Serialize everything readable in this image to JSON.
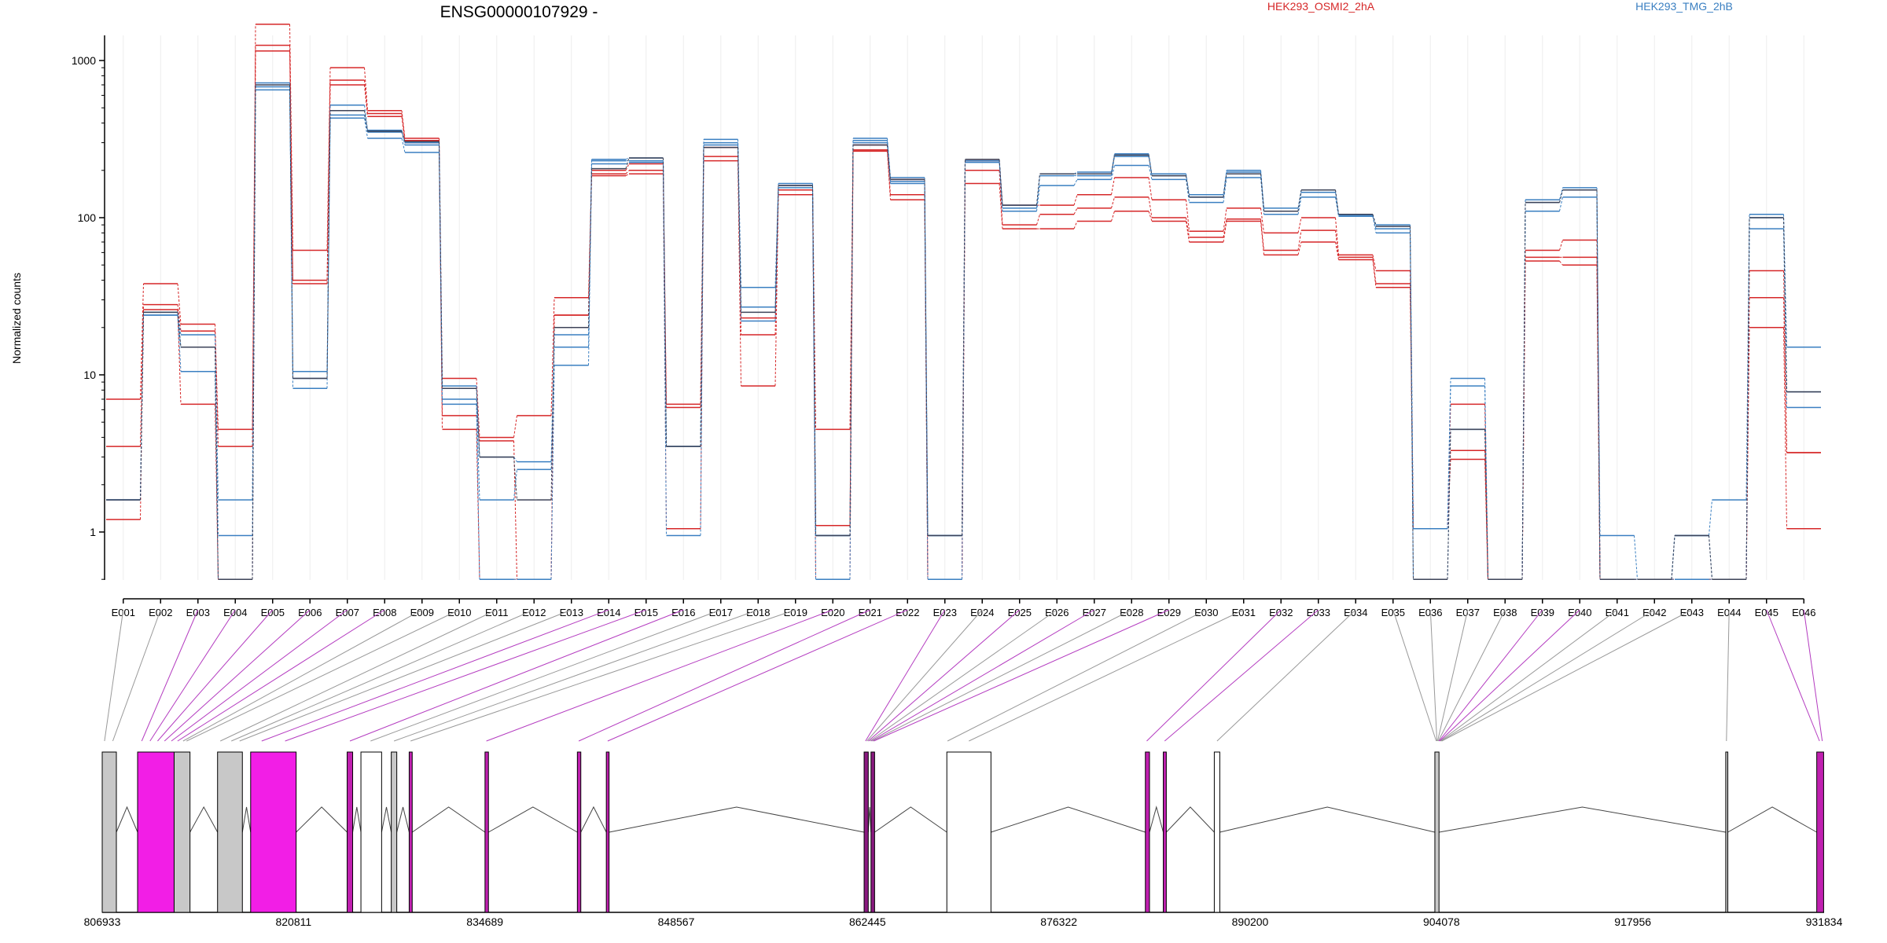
{
  "chart_data": {
    "type": "line",
    "title": "ENSG00000107929 -",
    "ylabel": "Normalized counts",
    "xlabel": "",
    "yscale": "log",
    "ylim": [
      0.5,
      2400
    ],
    "yticks": [
      1,
      10,
      100,
      1000
    ],
    "ytick_labels": [
      "1",
      "10",
      "100",
      "1000"
    ],
    "grid": "vertical-light",
    "legend_placement": "top",
    "legend": [
      {
        "label": "HEK293_OSMI2_2hA",
        "color": "#d62728"
      },
      {
        "label": "HEK293_TMG_2hB",
        "color": "#3a7fc1"
      }
    ],
    "categories": [
      "E001",
      "E002",
      "E003",
      "E004",
      "E005",
      "E006",
      "E007",
      "E008",
      "E009",
      "E010",
      "E011",
      "E012",
      "E013",
      "E014",
      "E015",
      "E016",
      "E017",
      "E018",
      "E019",
      "E020",
      "E021",
      "E022",
      "E023",
      "E024",
      "E025",
      "E026",
      "E027",
      "E028",
      "E029",
      "E030",
      "E031",
      "E032",
      "E033",
      "E034",
      "E035",
      "E036",
      "E037",
      "E038",
      "E039",
      "E040",
      "E041",
      "E042",
      "E043",
      "E044",
      "E045",
      "E046"
    ],
    "series": [
      {
        "color": "#d62728",
        "values": [
          7,
          38,
          21,
          4.5,
          1700,
          62,
          900,
          480,
          320,
          9.5,
          4,
          5.5,
          31,
          200,
          220,
          6.5,
          280,
          23,
          160,
          4.5,
          290,
          175,
          0.5,
          230,
          120,
          120,
          140,
          180,
          130,
          82,
          115,
          80,
          100,
          58,
          46,
          1.05,
          6.5,
          0.5,
          62,
          72,
          0.5,
          0.5,
          0.5,
          0.5,
          46,
          3.2
        ]
      },
      {
        "color": "#d62728",
        "values": [
          3.5,
          28,
          19,
          3.5,
          1250,
          40,
          750,
          460,
          310,
          5.5,
          3.8,
          0.5,
          24,
          190,
          200,
          6.2,
          245,
          18,
          150,
          1.1,
          270,
          140,
          0.5,
          200,
          90,
          105,
          115,
          135,
          100,
          75,
          98,
          62,
          83,
          56,
          38,
          1.05,
          3.3,
          0.5,
          56,
          56,
          0.5,
          0.5,
          0.5,
          0.5,
          31,
          3.2
        ]
      },
      {
        "color": "#d62728",
        "values": [
          1.2,
          26,
          6.5,
          0.5,
          1150,
          38,
          700,
          440,
          300,
          4.5,
          0.5,
          0.5,
          24,
          185,
          190,
          1.05,
          230,
          8.5,
          140,
          0.5,
          265,
          130,
          0.5,
          165,
          85,
          85,
          95,
          110,
          95,
          70,
          95,
          58,
          70,
          54,
          36,
          1.05,
          2.9,
          0.5,
          53,
          50,
          0.5,
          0.5,
          0.5,
          0.5,
          20,
          1.05
        ]
      },
      {
        "color": "#3a7fc1",
        "values": [
          1.6,
          25,
          18,
          1.6,
          720,
          10.5,
          520,
          360,
          300,
          8.5,
          3,
          2.8,
          18,
          235,
          240,
          3.5,
          315,
          36,
          165,
          0.95,
          320,
          180,
          0.95,
          235,
          120,
          190,
          195,
          255,
          190,
          140,
          200,
          115,
          150,
          105,
          90,
          1.05,
          9.5,
          0.5,
          130,
          155,
          0.95,
          0.5,
          0.95,
          1.6,
          105,
          15
        ]
      },
      {
        "color": "#3a7fc1",
        "values": [
          1.6,
          24,
          15,
          0.95,
          680,
          9.5,
          450,
          350,
          290,
          7,
          1.6,
          2.5,
          15,
          230,
          230,
          3.5,
          300,
          27,
          160,
          0.95,
          310,
          170,
          0.95,
          230,
          115,
          185,
          185,
          245,
          185,
          135,
          195,
          110,
          145,
          104,
          85,
          1.05,
          8.5,
          0.5,
          125,
          150,
          0.5,
          0.5,
          0.95,
          0.5,
          100,
          7.8
        ]
      },
      {
        "color": "#3a7fc1",
        "values": [
          1.6,
          24,
          10.5,
          0.5,
          650,
          8.2,
          430,
          320,
          260,
          6.5,
          0.5,
          0.5,
          11.5,
          220,
          225,
          0.95,
          290,
          22,
          155,
          0.5,
          300,
          165,
          0.5,
          225,
          110,
          160,
          175,
          215,
          175,
          125,
          180,
          105,
          135,
          102,
          80,
          0.5,
          4.5,
          0.5,
          110,
          135,
          0.5,
          0.5,
          0.5,
          0.5,
          85,
          6.2
        ]
      },
      {
        "color": "#3d4358",
        "values": [
          1.6,
          25,
          15,
          0.5,
          700,
          9.5,
          480,
          355,
          305,
          8.2,
          3,
          1.6,
          20,
          205,
          240,
          3.5,
          280,
          25,
          160,
          0.95,
          290,
          175,
          0.95,
          235,
          120,
          190,
          190,
          250,
          185,
          135,
          190,
          110,
          150,
          105,
          88,
          0.5,
          4.5,
          0.5,
          125,
          150,
          0.5,
          0.5,
          0.95,
          0.5,
          100,
          7.8
        ]
      }
    ],
    "gene_model": {
      "coord_ticks": [
        "806933",
        "820811",
        "834689",
        "848567",
        "862445",
        "876322",
        "890200",
        "904078",
        "917956",
        "931834"
      ],
      "exons": [
        {
          "start": 806933,
          "end": 807960,
          "color": "#c8c8c8"
        },
        {
          "start": 809500,
          "end": 812150,
          "color": "#f21ee6"
        },
        {
          "start": 812150,
          "end": 813300,
          "color": "#c8c8c8"
        },
        {
          "start": 815300,
          "end": 817100,
          "color": "#c8c8c8"
        },
        {
          "start": 817700,
          "end": 821000,
          "color": "#f21ee6"
        },
        {
          "start": 824700,
          "end": 825100,
          "color": "#c020b0"
        },
        {
          "start": 825700,
          "end": 827200,
          "color": "#ffffff"
        },
        {
          "start": 827900,
          "end": 828300,
          "color": "#c8c8c8"
        },
        {
          "start": 829200,
          "end": 829420,
          "color": "#c020b0"
        },
        {
          "start": 834700,
          "end": 834950,
          "color": "#c020b0"
        },
        {
          "start": 841400,
          "end": 841650,
          "color": "#c020b0"
        },
        {
          "start": 843500,
          "end": 843700,
          "color": "#c020b0"
        },
        {
          "start": 862200,
          "end": 862500,
          "color": "#8a1a80"
        },
        {
          "start": 862700,
          "end": 862960,
          "color": "#8a1a80"
        },
        {
          "start": 868200,
          "end": 871400,
          "color": "#ffffff"
        },
        {
          "start": 882600,
          "end": 882900,
          "color": "#c020b0"
        },
        {
          "start": 883900,
          "end": 884120,
          "color": "#c020b0"
        },
        {
          "start": 887600,
          "end": 888000,
          "color": "#ffffff"
        },
        {
          "start": 903600,
          "end": 903900,
          "color": "#c8c8c8"
        },
        {
          "start": 924700,
          "end": 924850,
          "color": "#c8c8c8"
        },
        {
          "start": 931300,
          "end": 931800,
          "color": "#c020b0"
        }
      ]
    }
  }
}
